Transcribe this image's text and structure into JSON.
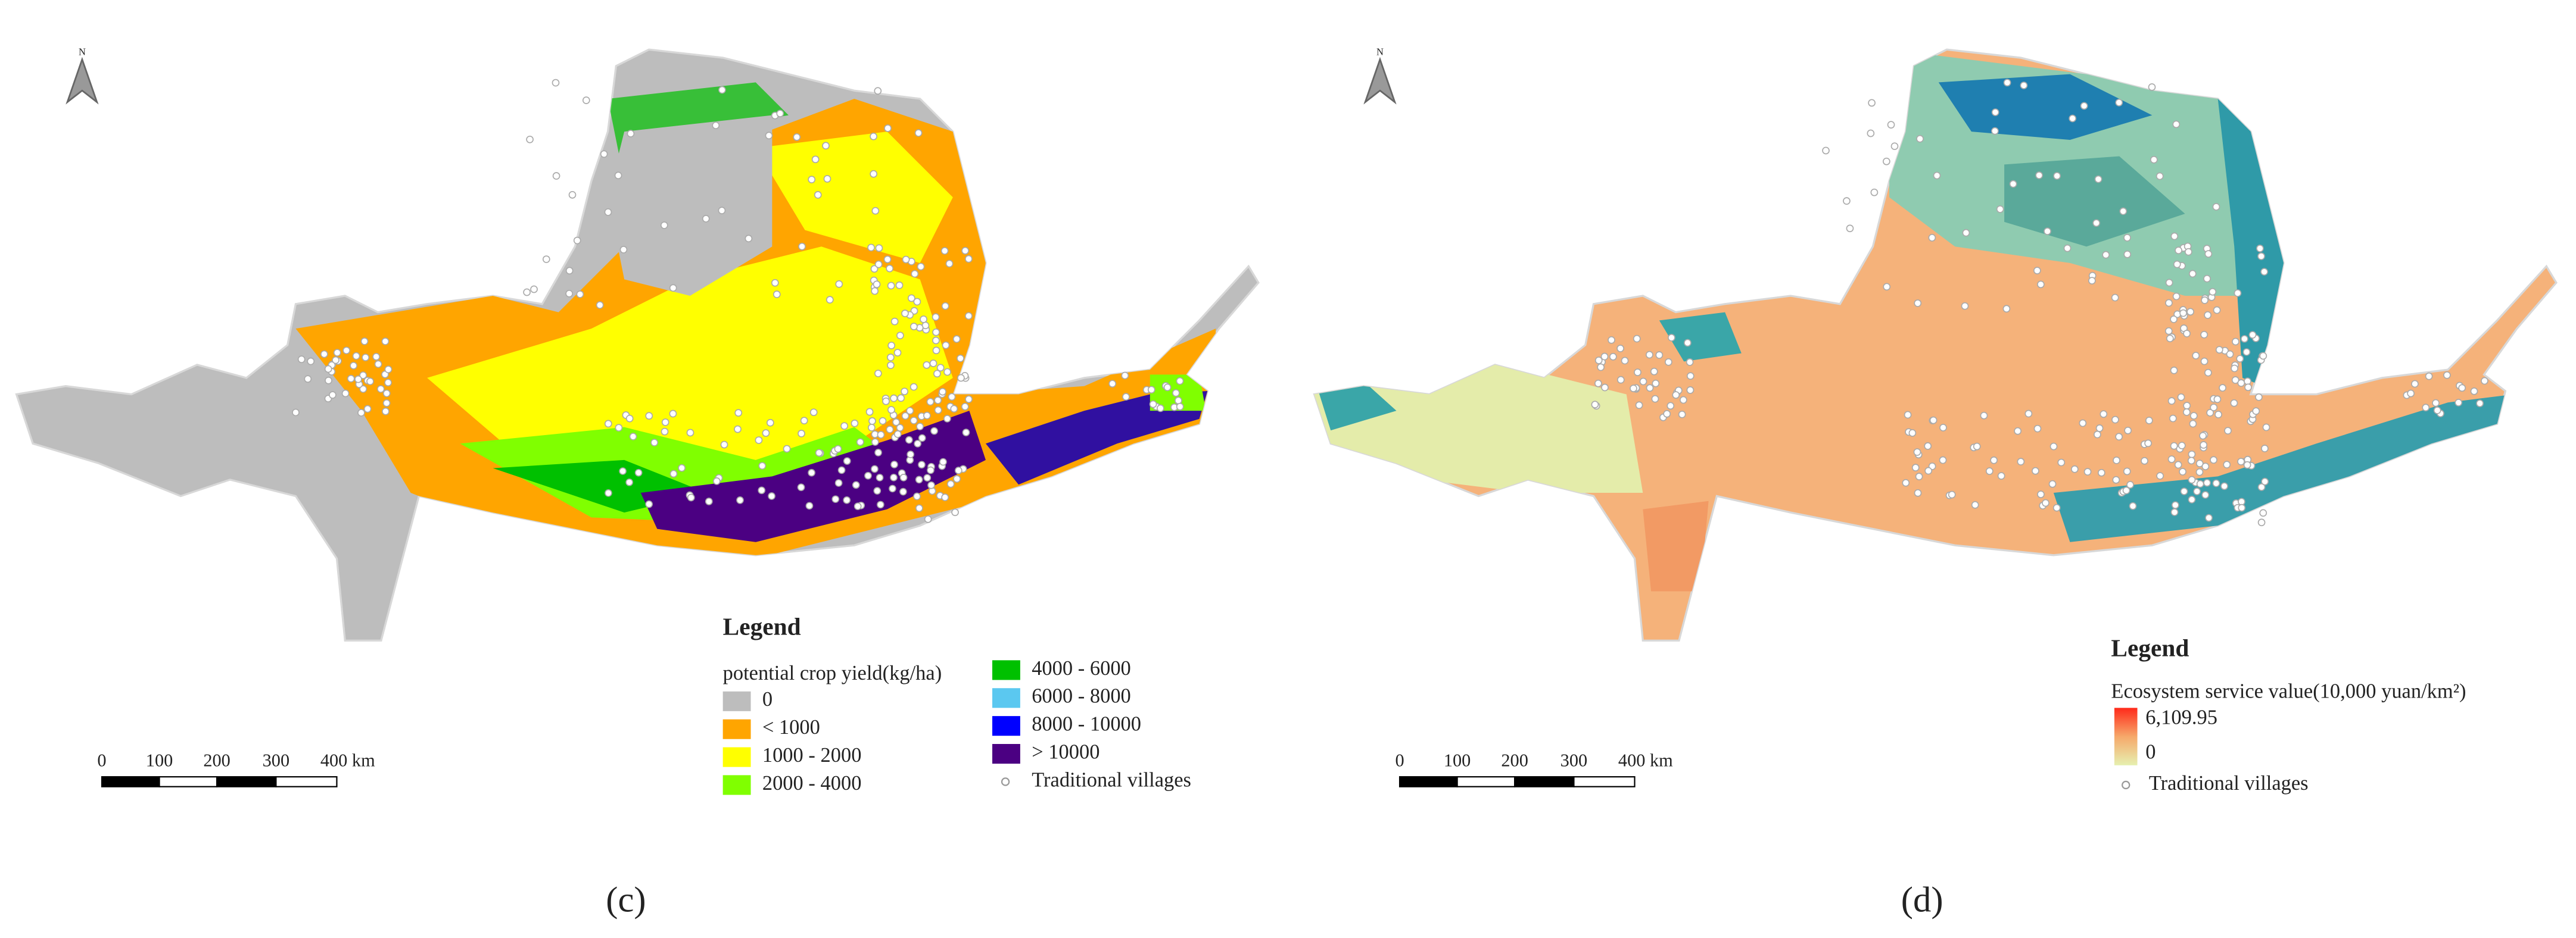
{
  "panels": [
    {
      "caption": "(c)",
      "north": "N",
      "scale_bar": {
        "labels": [
          "0",
          "100",
          "200",
          "300",
          "400 km"
        ]
      },
      "legend": {
        "title": "Legend",
        "subtitle": "potential crop yield(kg/ha)",
        "items": [
          {
            "label": "0",
            "color": "#bdbdbd"
          },
          {
            "label": "< 1000",
            "color": "#ffa500"
          },
          {
            "label": "1000 - 2000",
            "color": "#ffff00"
          },
          {
            "label": "2000 - 4000",
            "color": "#80ff00"
          },
          {
            "label": "4000 - 6000",
            "color": "#00c000"
          },
          {
            "label": "6000 - 8000",
            "color": "#5bc8f0"
          },
          {
            "label": "8000 - 10000",
            "color": "#0000ff"
          },
          {
            "label": "> 10000",
            "color": "#4b0082"
          }
        ],
        "points_label": "Traditional villages"
      }
    },
    {
      "caption": "(d)",
      "north": "N",
      "scale_bar": {
        "labels": [
          "0",
          "100",
          "200",
          "300",
          "400 km"
        ]
      },
      "legend": {
        "title": "Legend",
        "subtitle": "Ecosystem service value(10,000 yuan/km²)",
        "gradient": {
          "max": "6,109.95",
          "min": "0",
          "colors": [
            "#ff2a1a",
            "#f6a86a",
            "#e6f0b0"
          ]
        },
        "points_label": "Traditional villages"
      }
    }
  ]
}
